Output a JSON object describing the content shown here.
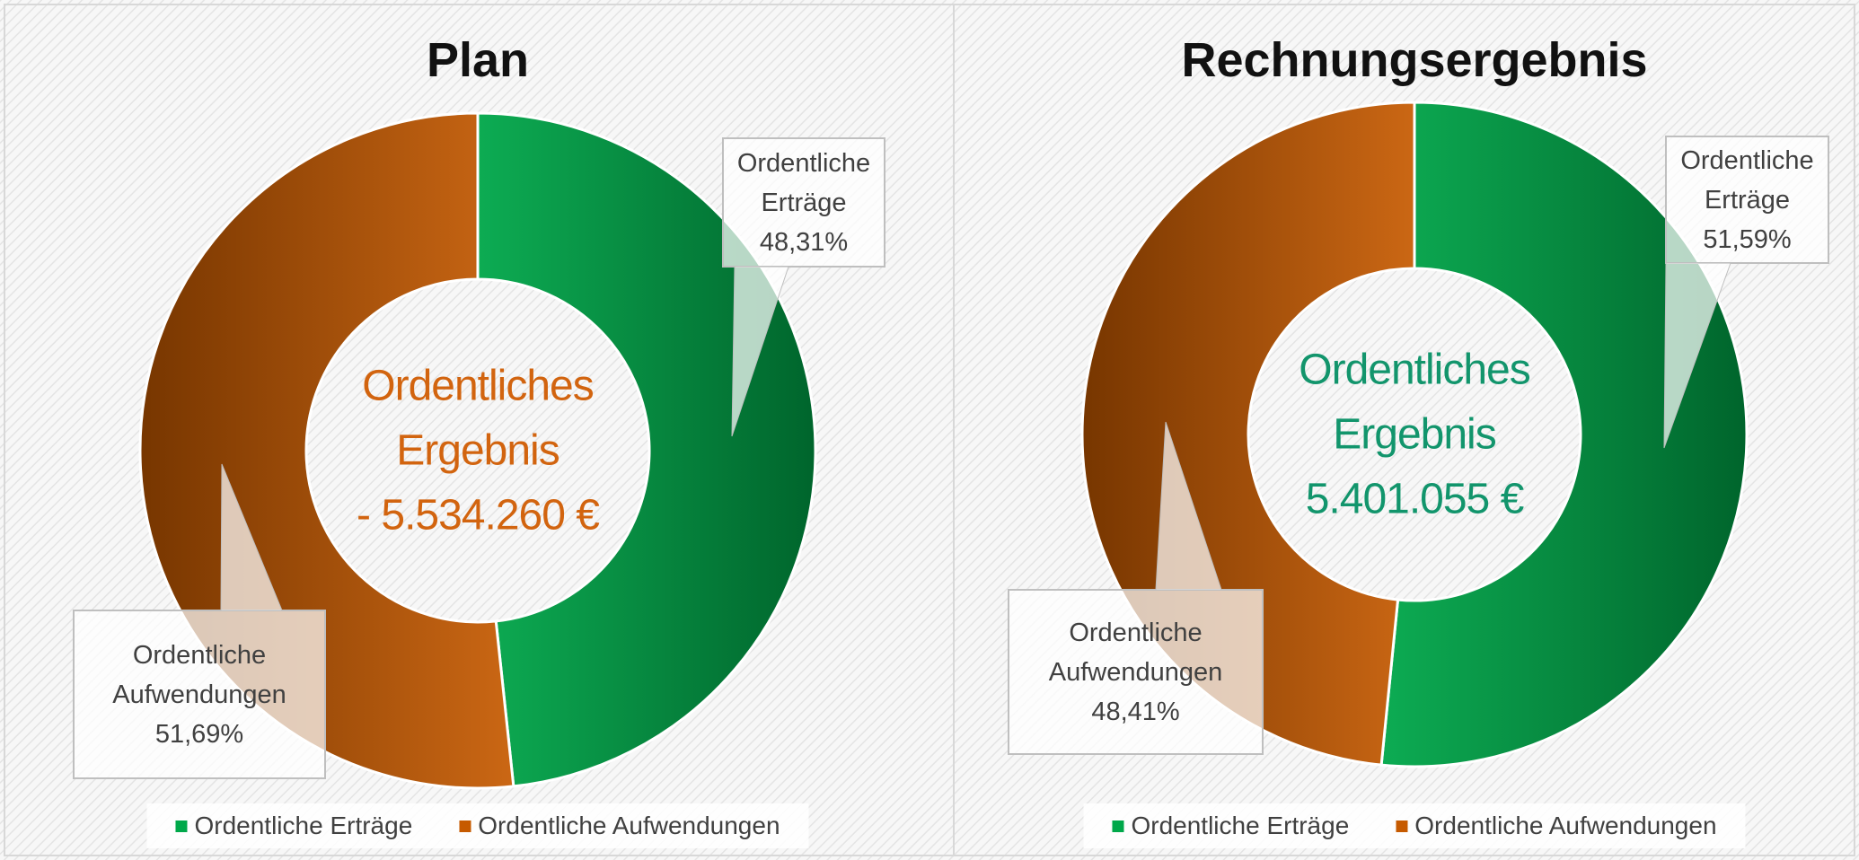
{
  "chart_data": [
    {
      "type": "pie",
      "title": "Plan",
      "categories": [
        "Ordentliche Erträge",
        "Ordentliche Aufwendungen"
      ],
      "values": [
        48.31,
        51.69
      ],
      "value_labels": [
        "48,31%",
        "51,69%"
      ],
      "colors": [
        "#00a84a",
        "#c65a00"
      ],
      "annotation": [
        "Ordentliches",
        "Ergebnis",
        "- 5.534.260 €"
      ],
      "annotation_color": "#d2640f",
      "legend": "bottom"
    },
    {
      "type": "pie",
      "title": "Rechnungsergebnis",
      "categories": [
        "Ordentliche Erträge",
        "Ordentliche Aufwendungen"
      ],
      "values": [
        51.59,
        48.41
      ],
      "value_labels": [
        "51,59%",
        "48,41%"
      ],
      "colors": [
        "#00a84a",
        "#c65a00"
      ],
      "annotation": [
        "Ordentliches",
        "Ergebnis",
        "5.401.055 €"
      ],
      "annotation_color": "#12956c",
      "legend": "bottom"
    }
  ]
}
